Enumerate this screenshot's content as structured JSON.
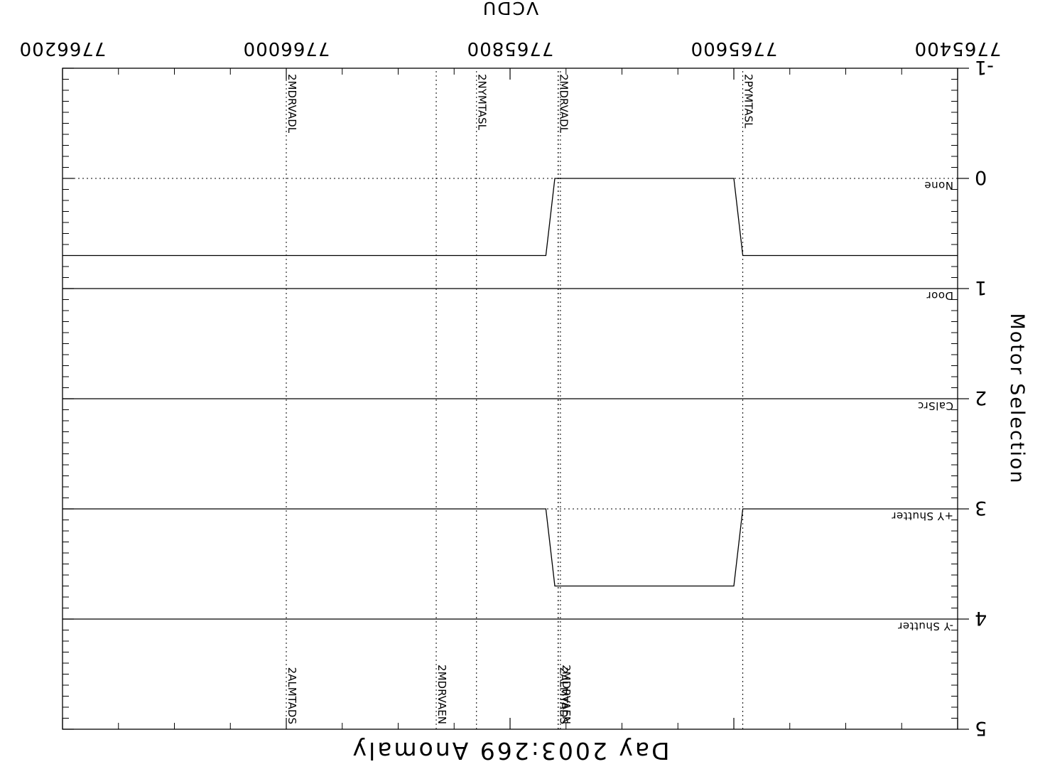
{
  "chart_data": {
    "type": "line",
    "title": "Day 2003:269 Anomaly",
    "xlabel": "VCDU",
    "ylabel": "Motor Selection",
    "orientation": "rotated-180",
    "x_ticks": [
      7765400,
      7765600,
      7765800,
      7766000,
      7766200
    ],
    "x_tick_labels": [
      "7765400",
      "7765600",
      "7765800",
      "7766000",
      "7766200"
    ],
    "xlim": [
      7765400,
      7766200
    ],
    "ylim": [
      -1,
      5
    ],
    "y_ticks": [
      -1,
      0,
      1,
      2,
      3,
      4,
      5
    ],
    "y_tick_labels": [
      "-1",
      "0",
      "1",
      "2",
      "3",
      "4",
      "5"
    ],
    "state_labels": [
      {
        "y": 0,
        "label": "None"
      },
      {
        "y": 1,
        "label": "Door"
      },
      {
        "y": 2,
        "label": "CalSrc"
      },
      {
        "y": 3,
        "label": "+Y Shutter"
      },
      {
        "y": 4,
        "label": "-Y Shutter"
      }
    ],
    "series": [
      {
        "values_x": [
          7765400,
          7765592,
          7765600,
          7765760,
          7765768,
          7766200
        ],
        "values_y": [
          0.7,
          0.7,
          0,
          0,
          0.7,
          0.7
        ]
      },
      {
        "values_x": [
          7765400,
          7766200
        ],
        "values_y": [
          1,
          1
        ]
      },
      {
        "values_x": [
          7765400,
          7766200
        ],
        "values_y": [
          2,
          2
        ]
      },
      {
        "values_x": [
          7765400,
          7765592,
          7765600,
          7765760,
          7765768,
          7766200
        ],
        "values_y": [
          3,
          3,
          3.7,
          3.7,
          3,
          3
        ]
      },
      {
        "values_x": [
          7765400,
          7766200
        ],
        "values_y": [
          4,
          4
        ]
      }
    ],
    "event_markers": [
      {
        "x": 7765592,
        "label": "2PYMTASL",
        "row": "bottom"
      },
      {
        "x": 7765755,
        "label": "2MDRVAEN",
        "row": "top"
      },
      {
        "x": 7765757,
        "label": "2ALMTADS",
        "row": "top"
      },
      {
        "x": 7765757,
        "label": "2MDRVADL",
        "row": "bottom"
      },
      {
        "x": 7765830,
        "label": "2NYMTASL",
        "row": "bottom"
      },
      {
        "x": 7765866,
        "label": "2MDRVAEN",
        "row": "top"
      },
      {
        "x": 7766000,
        "label": "2ALMTADS",
        "row": "top"
      },
      {
        "x": 7766000,
        "label": "2MDRVADL",
        "row": "bottom"
      }
    ]
  }
}
